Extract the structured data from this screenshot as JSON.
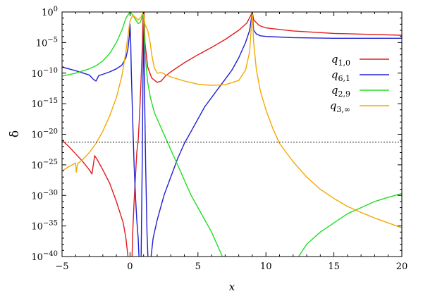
{
  "chart_data": {
    "type": "line",
    "title": "",
    "xlabel": "x",
    "ylabel": "δ",
    "xlim": [
      -5,
      20
    ],
    "y_scale": "log10",
    "ylim_exponent": [
      -40,
      0
    ],
    "x_ticks": [
      -5,
      0,
      5,
      10,
      15,
      20
    ],
    "x_tick_labels": [
      "−5",
      "0",
      "5",
      "10",
      "15",
      "20"
    ],
    "y_tick_exponents": [
      0,
      -5,
      -10,
      -15,
      -20,
      -25,
      -30,
      -35,
      -40
    ],
    "y_tick_labels": [
      {
        "base": "10",
        "exp": "0"
      },
      {
        "base": "10",
        "exp": "−5"
      },
      {
        "base": "10",
        "exp": "−10"
      },
      {
        "base": "10",
        "exp": "−15"
      },
      {
        "base": "10",
        "exp": "−20"
      },
      {
        "base": "10",
        "exp": "−25"
      },
      {
        "base": "10",
        "exp": "−30"
      },
      {
        "base": "10",
        "exp": "−35"
      },
      {
        "base": "10",
        "exp": "−40"
      }
    ],
    "reference_line": {
      "log10_y": -21.3,
      "style": "dotted",
      "color": "#000000"
    },
    "legend_position": "top-right",
    "series": [
      {
        "name": "q1,0",
        "label_main": "q",
        "label_sub": "1,0",
        "color": "#e31a1c",
        "segments": [
          [
            [
              -5,
              -21
            ],
            [
              -4.5,
              -22
            ],
            [
              -4,
              -23.2
            ],
            [
              -3.5,
              -24.4
            ],
            [
              -3,
              -25.8
            ],
            [
              -2.8,
              -26.5
            ],
            [
              -2.6,
              -23.5
            ],
            [
              -2.4,
              -24.2
            ],
            [
              -2,
              -25.8
            ],
            [
              -1.5,
              -28
            ],
            [
              -1,
              -31
            ],
            [
              -0.5,
              -34.5
            ],
            [
              -0.3,
              -37
            ],
            [
              -0.15,
              -40
            ]
          ],
          [
            [
              0.15,
              -40
            ],
            [
              0.2,
              -36
            ],
            [
              0.3,
              -31
            ],
            [
              0.4,
              -27
            ],
            [
              0.5,
              -23
            ],
            [
              0.6,
              -21
            ],
            [
              0.7,
              -17
            ],
            [
              0.8,
              -12
            ],
            [
              0.9,
              -6
            ],
            [
              0.97,
              0
            ],
            [
              1.03,
              0
            ],
            [
              1.1,
              -5
            ],
            [
              1.3,
              -9
            ],
            [
              1.6,
              -10.8
            ],
            [
              2,
              -11.5
            ],
            [
              2.3,
              -11.3
            ],
            [
              2.6,
              -10.5
            ],
            [
              3,
              -9.8
            ],
            [
              4,
              -8.3
            ],
            [
              5,
              -7
            ],
            [
              6,
              -5.8
            ],
            [
              7,
              -4.5
            ],
            [
              8,
              -3
            ],
            [
              8.6,
              -1.8
            ],
            [
              8.9,
              -0.5
            ],
            [
              9,
              0
            ],
            [
              9.1,
              -1.3
            ],
            [
              9.5,
              -2.2
            ],
            [
              10,
              -2.6
            ],
            [
              12,
              -3.1
            ],
            [
              15,
              -3.5
            ],
            [
              17.5,
              -3.65
            ],
            [
              20,
              -3.8
            ]
          ]
        ]
      },
      {
        "name": "q6,1",
        "label_main": "q",
        "label_sub": "6,1",
        "color": "#1f1fd6",
        "segments": [
          [
            [
              -5,
              -9
            ],
            [
              -4,
              -9.6
            ],
            [
              -3,
              -10.3
            ],
            [
              -2.7,
              -11
            ],
            [
              -2.5,
              -11.3
            ],
            [
              -2.3,
              -10.4
            ],
            [
              -2,
              -10.2
            ],
            [
              -1.5,
              -9.8
            ],
            [
              -1,
              -9.3
            ],
            [
              -0.6,
              -8.7
            ],
            [
              -0.3,
              -7.5
            ],
            [
              -0.15,
              -6
            ],
            [
              -0.05,
              -4
            ],
            [
              0,
              -2
            ],
            [
              0.05,
              -5
            ],
            [
              0.1,
              -10
            ],
            [
              0.2,
              -18
            ],
            [
              0.3,
              -25
            ],
            [
              0.4,
              -30
            ],
            [
              0.5,
              -34
            ],
            [
              0.6,
              -37
            ],
            [
              0.66,
              -40
            ]
          ],
          [
            [
              0.82,
              -40
            ],
            [
              0.85,
              -34
            ],
            [
              0.9,
              -24
            ],
            [
              0.95,
              -12
            ],
            [
              1,
              -2
            ],
            [
              1.05,
              -10
            ],
            [
              1.15,
              -25
            ],
            [
              1.25,
              -36
            ],
            [
              1.32,
              -40
            ]
          ],
          [
            [
              1.55,
              -40
            ],
            [
              1.7,
              -37
            ],
            [
              2,
              -34
            ],
            [
              2.5,
              -30
            ],
            [
              3,
              -27
            ],
            [
              3.5,
              -24
            ],
            [
              4,
              -21.5
            ],
            [
              4.5,
              -19.5
            ],
            [
              5,
              -17.5
            ],
            [
              5.5,
              -15.5
            ],
            [
              6,
              -14
            ],
            [
              6.5,
              -12.5
            ],
            [
              7,
              -11
            ],
            [
              7.5,
              -9.5
            ],
            [
              8,
              -7.5
            ],
            [
              8.5,
              -5
            ],
            [
              8.8,
              -3
            ],
            [
              9,
              0
            ],
            [
              9.1,
              -3
            ],
            [
              9.3,
              -3.6
            ],
            [
              9.6,
              -3.9
            ],
            [
              10,
              -4
            ],
            [
              12,
              -4.2
            ],
            [
              15,
              -4.3
            ],
            [
              20,
              -4.3
            ]
          ]
        ]
      },
      {
        "name": "q2,9",
        "label_main": "q",
        "label_sub": "2,9",
        "color": "#22dd22",
        "segments": [
          [
            [
              -5,
              -10.5
            ],
            [
              -4,
              -10
            ],
            [
              -3,
              -9.3
            ],
            [
              -2.5,
              -8.8
            ],
            [
              -2,
              -8
            ],
            [
              -1.5,
              -6.8
            ],
            [
              -1,
              -5
            ],
            [
              -0.6,
              -3
            ],
            [
              -0.3,
              -1
            ],
            [
              0,
              0
            ],
            [
              0.2,
              -0.5
            ],
            [
              0.4,
              -1.2
            ],
            [
              0.6,
              -1.9
            ],
            [
              0.75,
              -1.7
            ],
            [
              0.9,
              -0.8
            ],
            [
              0.97,
              0
            ],
            [
              1.05,
              -4
            ],
            [
              1.15,
              -8
            ],
            [
              1.3,
              -11.5
            ],
            [
              1.5,
              -14
            ],
            [
              1.8,
              -16.5
            ],
            [
              2.2,
              -18.5
            ],
            [
              2.6,
              -20.5
            ],
            [
              3,
              -22.5
            ],
            [
              3.5,
              -25
            ],
            [
              4,
              -27.5
            ],
            [
              4.5,
              -30
            ],
            [
              5,
              -32
            ],
            [
              5.5,
              -34
            ],
            [
              6,
              -36
            ],
            [
              6.5,
              -38.5
            ],
            [
              6.8,
              -40
            ]
          ],
          [
            [
              12.4,
              -40
            ],
            [
              13,
              -38
            ],
            [
              14,
              -36
            ],
            [
              15,
              -34.5
            ],
            [
              16,
              -33
            ],
            [
              17,
              -32
            ],
            [
              18,
              -31
            ],
            [
              19,
              -30.3
            ],
            [
              20,
              -29.7
            ]
          ]
        ]
      },
      {
        "name": "q3,∞",
        "label_main": "q",
        "label_sub": "3,∞",
        "color": "#f5a800",
        "segments": [
          [
            [
              -5,
              -26
            ],
            [
              -4.5,
              -25.3
            ],
            [
              -4,
              -24.7
            ],
            [
              -3.95,
              -26.2
            ],
            [
              -3.85,
              -24.8
            ],
            [
              -3.5,
              -24.2
            ],
            [
              -3,
              -23
            ],
            [
              -2.5,
              -21.5
            ],
            [
              -2,
              -19.5
            ],
            [
              -1.5,
              -17
            ],
            [
              -1,
              -14
            ],
            [
              -0.6,
              -10.5
            ],
            [
              -0.3,
              -6.5
            ],
            [
              -0.1,
              -3
            ],
            [
              0,
              -1.5
            ],
            [
              0.2,
              -0.5
            ],
            [
              0.4,
              -0.9
            ],
            [
              0.6,
              -1.3
            ],
            [
              0.8,
              -0.9
            ],
            [
              0.97,
              0
            ],
            [
              1.1,
              -2
            ],
            [
              1.3,
              -3
            ],
            [
              1.5,
              -5.2
            ],
            [
              1.6,
              -7
            ],
            [
              1.8,
              -9.2
            ],
            [
              2,
              -10
            ],
            [
              2.3,
              -9.9
            ],
            [
              2.6,
              -10.2
            ],
            [
              3,
              -10.6
            ],
            [
              4,
              -11.3
            ],
            [
              5,
              -11.8
            ],
            [
              6,
              -12
            ],
            [
              7,
              -11.9
            ],
            [
              8,
              -11.2
            ],
            [
              8.5,
              -9.5
            ],
            [
              8.8,
              -6.5
            ],
            [
              9,
              0
            ],
            [
              9.1,
              -5
            ],
            [
              9.3,
              -9.5
            ],
            [
              9.6,
              -13
            ],
            [
              10,
              -16
            ],
            [
              10.5,
              -19
            ],
            [
              11,
              -21.5
            ],
            [
              12,
              -24.5
            ],
            [
              13,
              -27
            ],
            [
              14,
              -29
            ],
            [
              15,
              -30.5
            ],
            [
              16,
              -31.8
            ],
            [
              17,
              -32.8
            ],
            [
              18,
              -33.7
            ],
            [
              19,
              -34.5
            ],
            [
              20,
              -35.3
            ]
          ]
        ]
      }
    ]
  }
}
